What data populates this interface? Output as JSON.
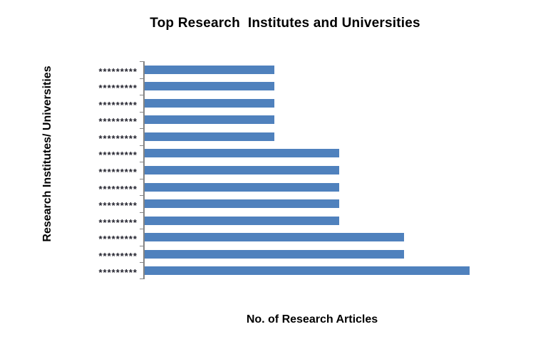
{
  "title": "Top Research  Institutes and Universities",
  "y_axis": {
    "title": "Research Institutes/ Universities",
    "tick_labels_visible": true
  },
  "x_axis": {
    "title": "No. of Research Articles",
    "tick_labels_visible": false
  },
  "colors": {
    "bar": "#4F81BD",
    "axis": "#848484",
    "title_text": "#000000",
    "category_label_text": "#23232e",
    "background": "#ffffff"
  },
  "chart_data": {
    "type": "bar",
    "orientation": "horizontal",
    "title": "Top Research  Institutes and Universities",
    "xlabel": "No. of Research Articles",
    "ylabel": "Research Institutes/ Universities",
    "categories_order": "top-to-bottom",
    "categories": [
      "*********",
      "*********",
      "*********",
      "*********",
      "*********",
      "*********",
      "*********",
      "*********",
      "*********",
      "*********",
      "*********",
      "*********",
      "*********"
    ],
    "values_unit": "percent of longest bar (numeric x-axis labels not shown in chart)",
    "values": [
      40,
      40,
      40,
      40,
      40,
      60,
      60,
      60,
      60,
      60,
      80,
      80,
      100
    ],
    "xlim": [
      0,
      100
    ],
    "grid": false,
    "legend": false
  }
}
